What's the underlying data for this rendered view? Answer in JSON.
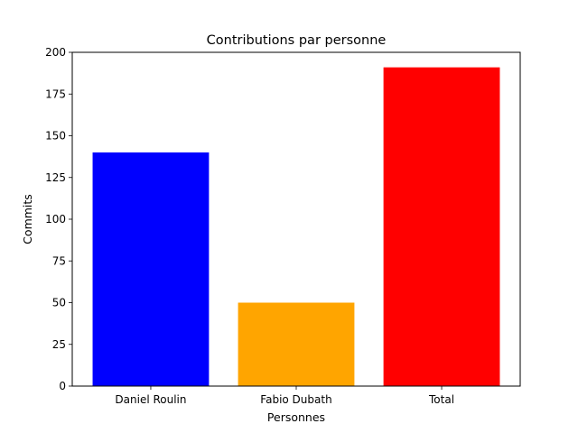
{
  "chart_data": {
    "type": "bar",
    "title": "Contributions par personne",
    "xlabel": "Personnes",
    "ylabel": "Commits",
    "categories": [
      "Daniel Roulin",
      "Fabio Dubath",
      "Total"
    ],
    "values": [
      140,
      50,
      191
    ],
    "colors": [
      "#0000ff",
      "#ffa500",
      "#ff0000"
    ],
    "ylim": [
      0,
      200
    ],
    "yticks": [
      0,
      25,
      50,
      75,
      100,
      125,
      150,
      175,
      200
    ],
    "grid": false,
    "legend": false
  }
}
